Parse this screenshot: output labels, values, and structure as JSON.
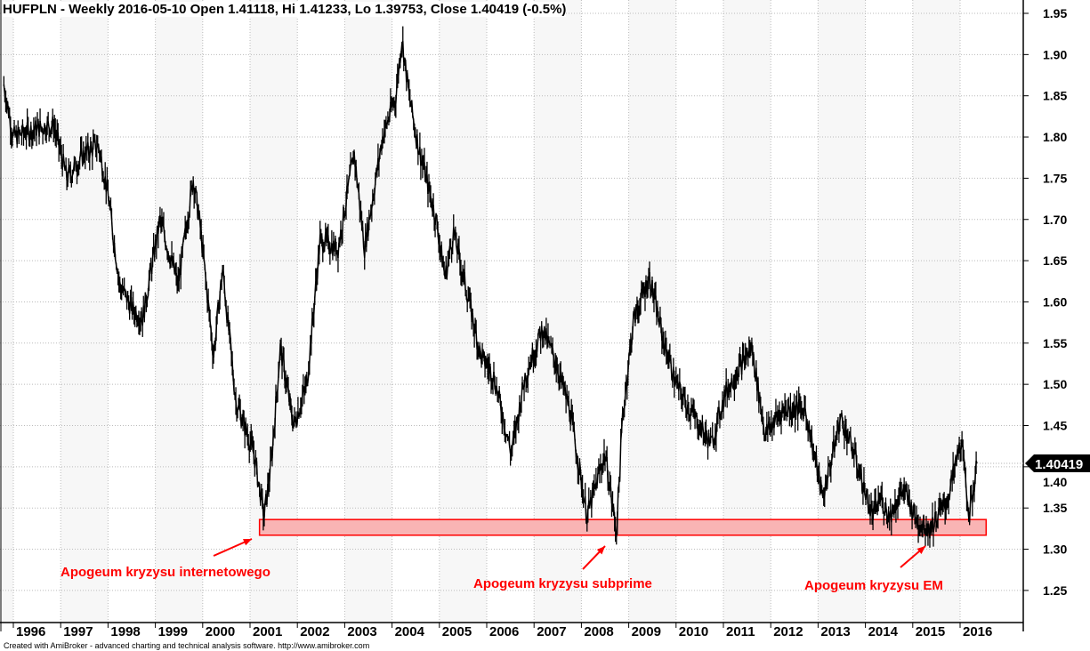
{
  "title": "HUFPLN - Weekly 2016-05-10 Open 1.41118, Hi 1.41233, Lo 1.39753, Close 1.40419 (-0.5%)",
  "footer": "Created with AmiBroker - advanced charting and technical analysis software. http://www.amibroker.com",
  "chart_data": {
    "type": "line",
    "symbol": "HUFPLN",
    "interval": "Weekly",
    "last": {
      "date": "2016-05-10",
      "open": 1.41118,
      "high": 1.41233,
      "low": 1.39753,
      "close": 1.40419,
      "change": "-0.5%"
    },
    "last_price_label": "1.40419",
    "ylim": [
      1.2,
      1.97
    ],
    "yticks": [
      "1.25",
      "1.30",
      "1.35",
      "1.40",
      "1.45",
      "1.50",
      "1.55",
      "1.60",
      "1.65",
      "1.70",
      "1.75",
      "1.80",
      "1.85",
      "1.90",
      "1.95"
    ],
    "xticks": [
      "1996",
      "1997",
      "1998",
      "1999",
      "2000",
      "2001",
      "2002",
      "2003",
      "2004",
      "2005",
      "2006",
      "2007",
      "2008",
      "2009",
      "2010",
      "2011",
      "2012",
      "2013",
      "2014",
      "2015",
      "2016"
    ],
    "x": [
      1995.8,
      1996.0,
      1996.47,
      1996.85,
      1997.13,
      1997.5,
      1997.8,
      1998.0,
      1998.25,
      1998.53,
      1998.73,
      1999.1,
      1999.48,
      1999.8,
      1999.95,
      2000.23,
      2000.42,
      2000.7,
      2001.08,
      2001.3,
      2001.45,
      2001.64,
      2001.92,
      2002.2,
      2002.48,
      2002.86,
      2003.2,
      2003.42,
      2003.8,
      2004.08,
      2004.21,
      2004.36,
      2004.55,
      2004.93,
      2005.12,
      2005.3,
      2005.59,
      2005.87,
      2006.15,
      2006.52,
      2006.81,
      2007.18,
      2007.47,
      2007.75,
      2008.12,
      2008.5,
      2008.74,
      2008.87,
      2009.1,
      2009.44,
      2009.72,
      2010.0,
      2010.38,
      2010.75,
      2011.04,
      2011.6,
      2011.88,
      2012.26,
      2012.73,
      2013.1,
      2013.48,
      2013.76,
      2014.14,
      2014.33,
      2014.51,
      2014.8,
      2015.08,
      2015.36,
      2015.74,
      2016.02,
      2016.2,
      2016.36
    ],
    "values": [
      1.864,
      1.8,
      1.81,
      1.815,
      1.75,
      1.78,
      1.79,
      1.73,
      1.62,
      1.59,
      1.58,
      1.7,
      1.62,
      1.75,
      1.69,
      1.535,
      1.64,
      1.48,
      1.416,
      1.34,
      1.405,
      1.545,
      1.45,
      1.5,
      1.675,
      1.665,
      1.78,
      1.665,
      1.8,
      1.85,
      1.92,
      1.85,
      1.79,
      1.7,
      1.63,
      1.685,
      1.61,
      1.535,
      1.51,
      1.416,
      1.51,
      1.567,
      1.525,
      1.47,
      1.34,
      1.416,
      1.32,
      1.46,
      1.578,
      1.63,
      1.556,
      1.5,
      1.46,
      1.427,
      1.49,
      1.545,
      1.44,
      1.47,
      1.47,
      1.362,
      1.46,
      1.416,
      1.34,
      1.362,
      1.34,
      1.373,
      1.335,
      1.325,
      1.36,
      1.432,
      1.34,
      1.404
    ],
    "support_zone": {
      "from": 1.317,
      "to": 1.336,
      "start": 2001.2,
      "end": 2016.55
    },
    "annotations": [
      {
        "text": "Apogeum kryzysu internetowego",
        "target_year": 2001.25
      },
      {
        "text": "Apogeum kryzysu subprime",
        "target_year": 2008.7
      },
      {
        "text": "Apogeum kryzysu EM",
        "target_year": 2015.3
      }
    ],
    "colors": {
      "series": "#000000",
      "zone_fill": "#f9b4b4",
      "zone_stroke": "#ff0000",
      "annotation": "#ff0000",
      "band": "#f7f7f7"
    }
  }
}
